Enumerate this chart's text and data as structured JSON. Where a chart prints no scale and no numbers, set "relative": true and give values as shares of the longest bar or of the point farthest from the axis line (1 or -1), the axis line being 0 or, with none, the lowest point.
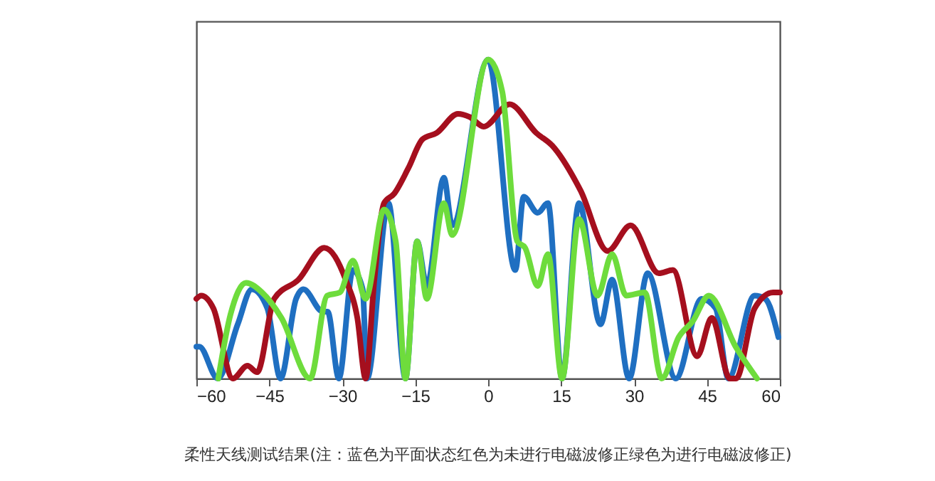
{
  "chart_data": {
    "type": "line",
    "relative": true,
    "xlim": [
      -60,
      60
    ],
    "xticks": [
      -60,
      -45,
      -30,
      -15,
      0,
      15,
      30,
      45,
      60
    ],
    "grid": false,
    "marker": "none",
    "line_style": "solid",
    "annotations": [
      "柔性天线测试结果(注：蓝色为平面状态红色为未进行电磁波修正绿色为进行电磁波修正)"
    ],
    "series": [
      {
        "color": "#1f6fc1",
        "x": [
          -60,
          -59.4,
          -55.6,
          -51.5,
          -48.6,
          -45.4,
          -42.7,
          -39.5,
          -38,
          -34,
          -33,
          -30.7,
          -27.8,
          -25.8,
          -24.9,
          -20.5,
          -17,
          -14.6,
          -12.6,
          -9.1,
          -7.4,
          0,
          5.6,
          7.3,
          10.2,
          12.3,
          15.2,
          18.7,
          23.1,
          25.5,
          29,
          32.8,
          38.6,
          43.9,
          46.8,
          49.4,
          54.8,
          57,
          59.7
        ],
        "values": [
          0.1,
          0.1,
          0,
          0.17,
          0.28,
          0.22,
          0,
          0.25,
          0.28,
          0.21,
          0.21,
          0,
          0.34,
          0.28,
          0,
          0.55,
          0,
          0.43,
          0.29,
          0.63,
          0.48,
          1,
          0.34,
          0.57,
          0.52,
          0.55,
          0,
          0.55,
          0.17,
          0.31,
          0,
          0.33,
          0,
          0.25,
          0.22,
          0,
          0.26,
          0.25,
          0.13
        ]
      },
      {
        "color": "#a50f1e",
        "x": [
          -60,
          -59,
          -56.5,
          -52.5,
          -49.5,
          -47.5,
          -44,
          -39,
          -33.7,
          -29.3,
          -26.9,
          -25.2,
          -23.4,
          -21.4,
          -19.3,
          -16.4,
          -13.5,
          -10.6,
          -6.2,
          -3.8,
          -0.9,
          4.4,
          9.9,
          13.2,
          19,
          24.6,
          29.3,
          35.1,
          38,
          43,
          46,
          49.7,
          51,
          54.8,
          58.6,
          60
        ],
        "values": [
          0.25,
          0.26,
          0.22,
          0,
          0.04,
          0.02,
          0.25,
          0.31,
          0.41,
          0.31,
          0.19,
          0,
          0.31,
          0.55,
          0.58,
          0.66,
          0.75,
          0.77,
          0.83,
          0.82,
          0.79,
          0.86,
          0.77,
          0.73,
          0.59,
          0.4,
          0.48,
          0.33,
          0.34,
          0.07,
          0.19,
          0,
          0,
          0.22,
          0.27,
          0.27
        ]
      },
      {
        "color": "#6edc3c",
        "x": [
          -55.5,
          -53,
          -49.8,
          -46.5,
          -42.5,
          -36.6,
          -33.1,
          -30.5,
          -27.8,
          -25.2,
          -21.4,
          -19,
          -17,
          -14.6,
          -12.6,
          -9.1,
          -7.4,
          0,
          2.9,
          6,
          7.6,
          10.2,
          12.3,
          15.2,
          18.7,
          22.5,
          25.5,
          28.4,
          32.2,
          35.7,
          39.2,
          42.1,
          45.4,
          50.9,
          55.3
        ],
        "values": [
          0,
          0.2,
          0.3,
          0.27,
          0.19,
          0,
          0.26,
          0.27,
          0.37,
          0.25,
          0.53,
          0.43,
          0,
          0.43,
          0.25,
          0.55,
          0.45,
          1,
          0.9,
          0.43,
          0.41,
          0.29,
          0.39,
          0,
          0.5,
          0.26,
          0.39,
          0.26,
          0.27,
          0,
          0.13,
          0.18,
          0.26,
          0.1,
          0
        ]
      }
    ]
  }
}
